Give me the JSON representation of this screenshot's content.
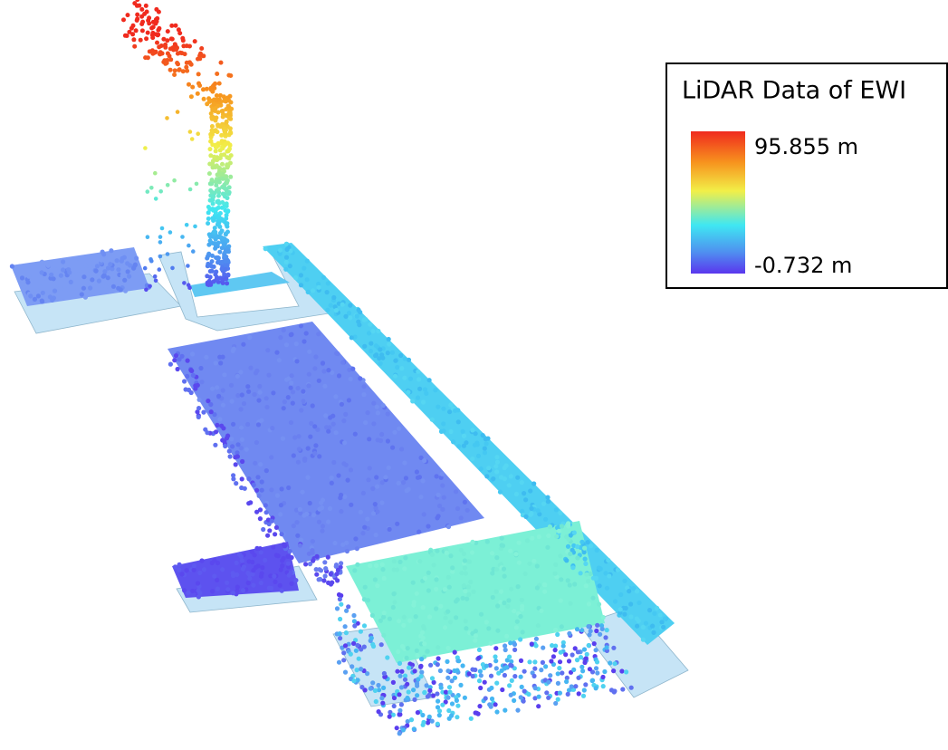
{
  "legend": {
    "title": "LiDAR Data of EWI",
    "max_label": "95.855 m",
    "min_label": "-0.732 m"
  }
}
